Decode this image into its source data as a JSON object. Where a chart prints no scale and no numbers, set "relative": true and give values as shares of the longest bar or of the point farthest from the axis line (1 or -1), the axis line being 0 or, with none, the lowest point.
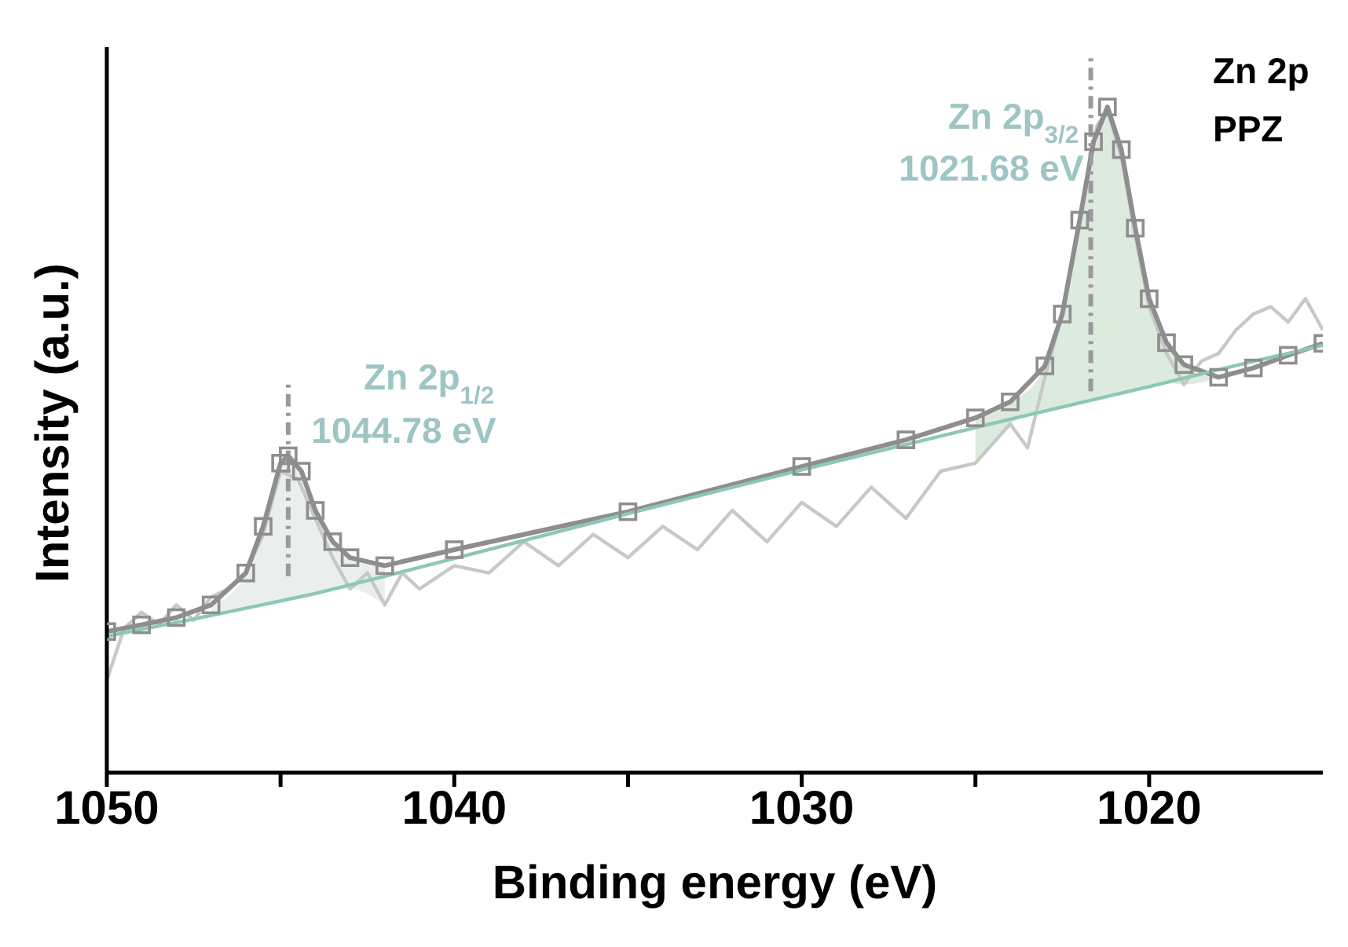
{
  "chart_data": {
    "type": "line",
    "xlabel": "Binding energy (eV)",
    "ylabel": "Intensity (a.u.)",
    "relative": true,
    "xlim": [
      1050,
      1015
    ],
    "xticks": [
      1050,
      {
        "value": 1045,
        "label": null
      },
      1040,
      {
        "value": 1035,
        "label": null
      },
      1030,
      {
        "value": 1025,
        "label": null
      },
      1020
    ],
    "series": [
      {
        "type": "area",
        "color": "#e6ebea",
        "x": [
          1047,
          1046,
          1045.5,
          1045,
          1044.78,
          1044.4,
          1044,
          1043.5,
          1043,
          1042
        ],
        "values": [
          0.25,
          0.298,
          0.368,
          0.463,
          0.474,
          0.451,
          0.392,
          0.345,
          0.322,
          0.31
        ]
      },
      {
        "type": "area",
        "color": "#d6e8d8",
        "x": [
          1025,
          1024,
          1023,
          1022.5,
          1022,
          1021.6,
          1021.2,
          1020.8,
          1020.4,
          1020,
          1019.5,
          1019,
          1018
        ],
        "values": [
          0.532,
          0.555,
          0.609,
          0.687,
          0.828,
          0.946,
          0.998,
          0.934,
          0.816,
          0.71,
          0.644,
          0.611,
          0.592
        ]
      },
      {
        "color": "#c8c8c8",
        "marker": "none",
        "x": [
          1050,
          1049.5,
          1049,
          1048.5,
          1048,
          1047.5,
          1047,
          1046.5,
          1046,
          1045.5,
          1045,
          1044.5,
          1044,
          1043.5,
          1043,
          1042.5,
          1042,
          1041.5,
          1041,
          1040,
          1039,
          1038,
          1037,
          1036,
          1035,
          1034,
          1033,
          1032,
          1031,
          1030,
          1029,
          1028,
          1027,
          1026,
          1025,
          1024,
          1023.5,
          1023,
          1022.5,
          1022,
          1021.5,
          1021.2,
          1020.8,
          1020.4,
          1020,
          1019.5,
          1019,
          1018.5,
          1018,
          1017.5,
          1017,
          1016.5,
          1016,
          1015.5,
          1015
        ],
        "values": [
          0.139,
          0.217,
          0.241,
          0.222,
          0.252,
          0.229,
          0.264,
          0.276,
          0.3,
          0.358,
          0.453,
          0.441,
          0.382,
          0.323,
          0.276,
          0.3,
          0.252,
          0.3,
          0.276,
          0.311,
          0.3,
          0.347,
          0.311,
          0.358,
          0.323,
          0.37,
          0.335,
          0.394,
          0.347,
          0.406,
          0.37,
          0.429,
          0.382,
          0.453,
          0.465,
          0.524,
          0.488,
          0.594,
          0.689,
          0.83,
          0.972,
          0.995,
          0.925,
          0.807,
          0.7,
          0.63,
          0.583,
          0.618,
          0.63,
          0.665,
          0.689,
          0.7,
          0.677,
          0.712,
          0.665
        ]
      },
      {
        "color": "#8e8e8e",
        "marker": "square",
        "x": [
          1050,
          1049,
          1048,
          1047,
          1046,
          1045.5,
          1045,
          1044.78,
          1044.4,
          1044,
          1043.5,
          1043,
          1042,
          1040,
          1035,
          1030,
          1027,
          1025,
          1024,
          1023,
          1022.5,
          1022,
          1021.6,
          1021.2,
          1020.8,
          1020.4,
          1020,
          1019.5,
          1019,
          1018,
          1017,
          1016,
          1015
        ],
        "values": [
          0.212,
          0.222,
          0.233,
          0.252,
          0.3,
          0.37,
          0.465,
          0.476,
          0.453,
          0.394,
          0.347,
          0.323,
          0.311,
          0.335,
          0.392,
          0.46,
          0.5,
          0.533,
          0.557,
          0.611,
          0.689,
          0.83,
          0.948,
          1,
          0.936,
          0.818,
          0.712,
          0.646,
          0.613,
          0.594,
          0.608,
          0.627,
          0.645
        ]
      },
      {
        "color": "#8cc8b4",
        "marker": "none",
        "x": [
          1050,
          1047,
          1044,
          1042,
          1035,
          1030,
          1027,
          1024,
          1020,
          1017,
          1015
        ],
        "values": [
          0.205,
          0.236,
          0.269,
          0.295,
          0.389,
          0.455,
          0.493,
          0.531,
          0.58,
          0.618,
          0.642
        ]
      }
    ],
    "ref_lines": [
      {
        "axis": "x",
        "value": 1044.78,
        "color": "#9a9a9a",
        "line_style": "dashed"
      },
      {
        "axis": "x",
        "value": 1021.68,
        "color": "#9a9a9a",
        "line_style": "dashed"
      }
    ],
    "annotations": [
      "Zn 2p$_{3/2}$",
      "1021.68 eV",
      "Zn 2p$_{1/2}$",
      "1044.78 eV",
      "Zn 2p",
      "PPZ"
    ]
  }
}
